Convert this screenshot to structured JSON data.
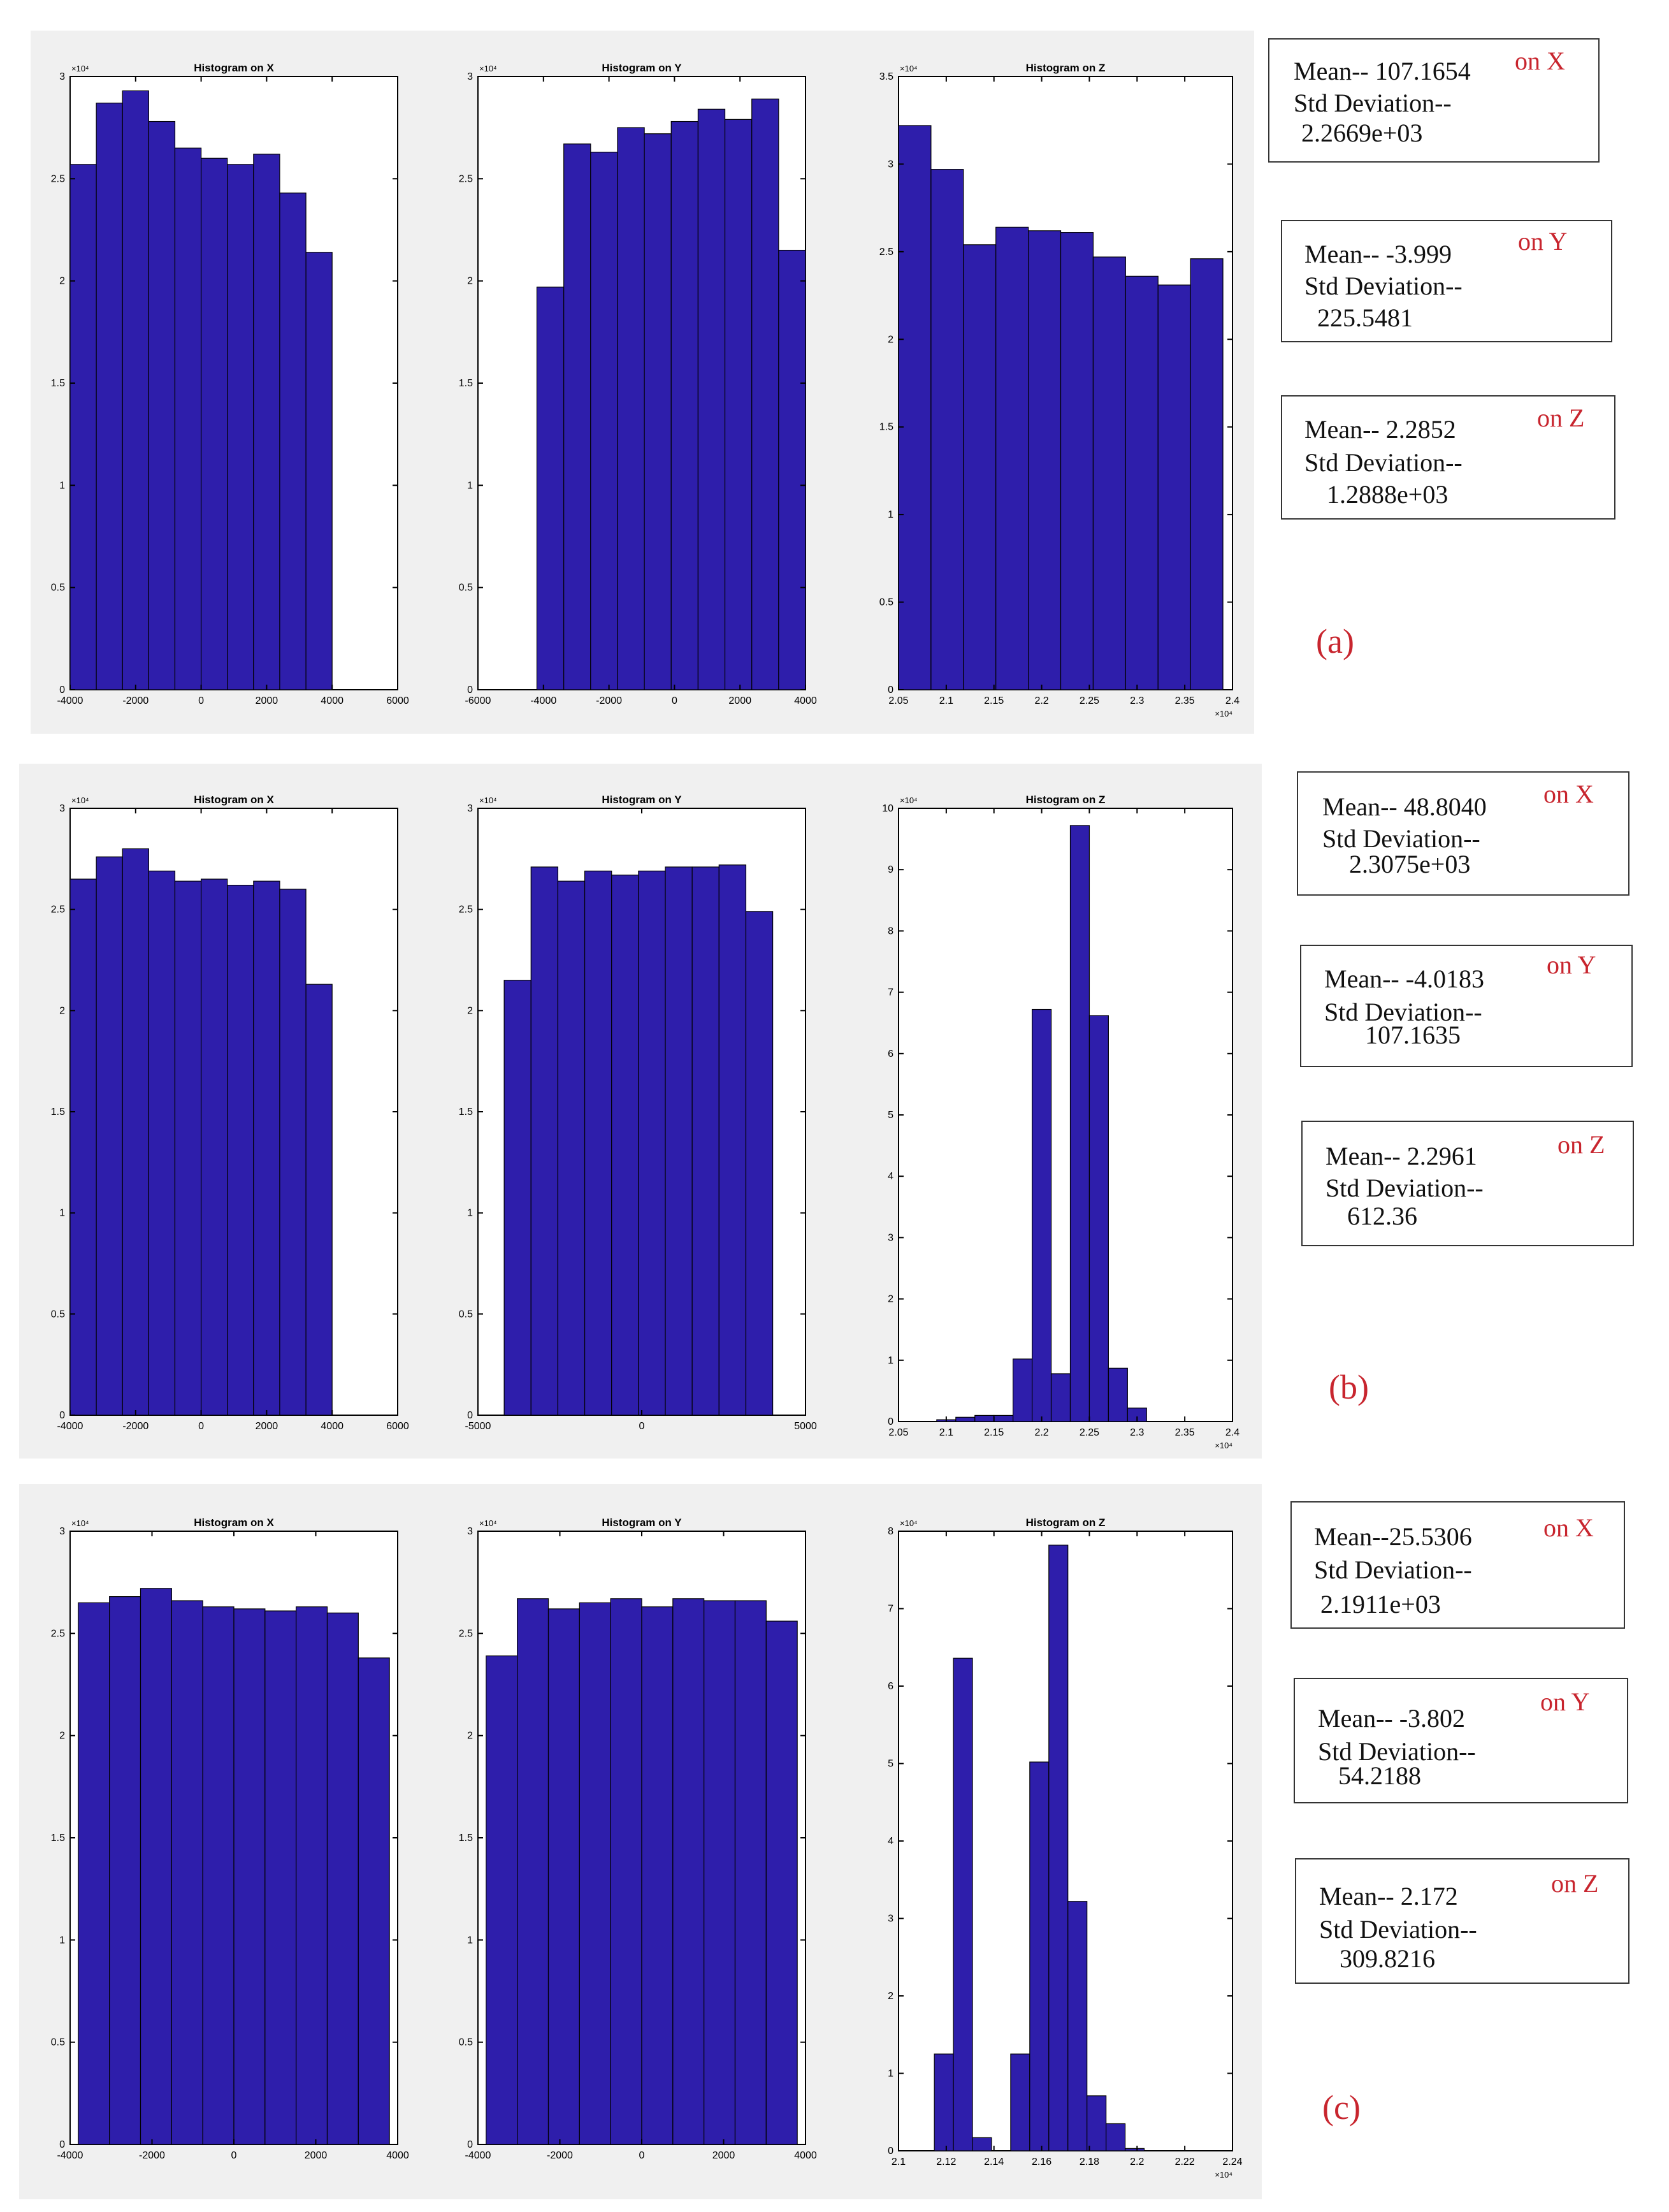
{
  "colors": {
    "bar": "#2e1eab",
    "accent": "#c8252e",
    "panel_bg": "#f0f0f0"
  },
  "panels": [
    {
      "label": "(a)",
      "stats": [
        {
          "mean_label": "Mean--",
          "mean_value": "107.1654",
          "axis": "on X",
          "std_label": "Std Deviation--",
          "std_value": "2.2669e+03"
        },
        {
          "mean_label": "Mean--",
          "mean_value": "-3.999",
          "axis": "on Y",
          "std_label": "Std Deviation--",
          "std_value": "225.5481"
        },
        {
          "mean_label": "Mean--",
          "mean_value": "2.2852",
          "axis": "on Z",
          "std_label": "Std Deviation--",
          "std_value": "1.2888e+03"
        }
      ]
    },
    {
      "label": "(b)",
      "stats": [
        {
          "mean_label": "Mean--",
          "mean_value": "48.8040",
          "axis": "on X",
          "std_label": "Std Deviation--",
          "std_value": "2.3075e+03"
        },
        {
          "mean_label": "Mean--",
          "mean_value": "-4.0183",
          "axis": "on Y",
          "std_label": "Std Deviation--",
          "std_value": "107.1635"
        },
        {
          "mean_label": "Mean--",
          "mean_value": "2.2961",
          "axis": "on Z",
          "std_label": "Std Deviation--",
          "std_value": "612.36"
        }
      ]
    },
    {
      "label": "(c)",
      "stats": [
        {
          "mean_label": "Mean--",
          "mean_value": "25.5306",
          "axis": "on X",
          "std_label": "Std Deviation--",
          "std_value": "2.1911e+03"
        },
        {
          "mean_label": "Mean--",
          "mean_value": "-3.802",
          "axis": "on Y",
          "std_label": "Std Deviation--",
          "std_value": "54.2188"
        },
        {
          "mean_label": "Mean--",
          "mean_value": "2.172",
          "axis": "on Z",
          "std_label": "Std Deviation--",
          "std_value": "309.8216"
        }
      ]
    }
  ],
  "chart_data": [
    {
      "type": "bar",
      "panel": "(a)",
      "title": "Histogram on X",
      "xlim": [
        -4000,
        6000
      ],
      "ylim": [
        0,
        3
      ],
      "xticks": [
        -4000,
        -2000,
        0,
        2000,
        4000,
        6000
      ],
      "xtick_labels": [
        "-4000",
        "-2000",
        "0",
        "2000",
        "4000",
        "6000"
      ],
      "yticks": [
        0,
        0.5,
        1,
        1.5,
        2,
        2.5,
        3
      ],
      "ytick_labels": [
        "0",
        "0.5",
        "1",
        "1.5",
        "2",
        "2.5",
        "3"
      ],
      "y_multiplier": "×10⁴",
      "x_multiplier": "",
      "bin_edges": [
        -4000,
        -3200,
        -2400,
        -1600,
        -800,
        0,
        800,
        1600,
        2400,
        3200,
        4000
      ],
      "values": [
        2.57,
        2.87,
        2.93,
        2.78,
        2.65,
        2.6,
        2.57,
        2.62,
        2.43,
        2.14
      ]
    },
    {
      "type": "bar",
      "panel": "(a)",
      "title": "Histogram on Y",
      "xlim": [
        -6000,
        4000
      ],
      "ylim": [
        0,
        3
      ],
      "xticks": [
        -6000,
        -4000,
        -2000,
        0,
        2000,
        4000
      ],
      "xtick_labels": [
        "-6000",
        "-4000",
        "-2000",
        "0",
        "2000",
        "4000"
      ],
      "yticks": [
        0,
        0.5,
        1,
        1.5,
        2,
        2.5,
        3
      ],
      "ytick_labels": [
        "0",
        "0.5",
        "1",
        "1.5",
        "2",
        "2.5",
        "3"
      ],
      "y_multiplier": "×10⁴",
      "x_multiplier": "",
      "bin_edges": [
        -4200,
        -3380,
        -2560,
        -1740,
        -920,
        -100,
        720,
        1540,
        2360,
        3180,
        4000
      ],
      "values": [
        1.97,
        2.67,
        2.63,
        2.75,
        2.72,
        2.78,
        2.84,
        2.79,
        2.89,
        2.15
      ]
    },
    {
      "type": "bar",
      "panel": "(a)",
      "title": "Histogram on Z",
      "xlim": [
        2.05,
        2.4
      ],
      "ylim": [
        0,
        3.5
      ],
      "xticks": [
        2.05,
        2.1,
        2.15,
        2.2,
        2.25,
        2.3,
        2.35,
        2.4
      ],
      "xtick_labels": [
        "2.05",
        "2.1",
        "2.15",
        "2.2",
        "2.25",
        "2.3",
        "2.35",
        "2.4"
      ],
      "yticks": [
        0,
        0.5,
        1,
        1.5,
        2,
        2.5,
        3,
        3.5
      ],
      "ytick_labels": [
        "0",
        "0.5",
        "1",
        "1.5",
        "2",
        "2.5",
        "3",
        "3.5"
      ],
      "y_multiplier": "×10⁴",
      "x_multiplier": "×10⁴",
      "bin_edges": [
        2.05,
        2.084,
        2.118,
        2.152,
        2.186,
        2.22,
        2.254,
        2.288,
        2.322,
        2.356,
        2.39
      ],
      "values": [
        3.22,
        2.97,
        2.54,
        2.64,
        2.62,
        2.61,
        2.47,
        2.36,
        2.31,
        2.46
      ]
    },
    {
      "type": "bar",
      "panel": "(b)",
      "title": "Histogram on X",
      "xlim": [
        -4000,
        6000
      ],
      "ylim": [
        0,
        3
      ],
      "xticks": [
        -4000,
        -2000,
        0,
        2000,
        4000,
        6000
      ],
      "xtick_labels": [
        "-4000",
        "-2000",
        "0",
        "2000",
        "4000",
        "6000"
      ],
      "yticks": [
        0,
        0.5,
        1,
        1.5,
        2,
        2.5,
        3
      ],
      "ytick_labels": [
        "0",
        "0.5",
        "1",
        "1.5",
        "2",
        "2.5",
        "3"
      ],
      "y_multiplier": "×10⁴",
      "x_multiplier": "",
      "bin_edges": [
        -4000,
        -3200,
        -2400,
        -1600,
        -800,
        0,
        800,
        1600,
        2400,
        3200,
        4000
      ],
      "values": [
        2.65,
        2.76,
        2.8,
        2.69,
        2.64,
        2.65,
        2.62,
        2.64,
        2.6,
        2.13
      ]
    },
    {
      "type": "bar",
      "panel": "(b)",
      "title": "Histogram on Y",
      "xlim": [
        -5000,
        5000
      ],
      "ylim": [
        0,
        3
      ],
      "xticks": [
        -5000,
        0,
        5000
      ],
      "xtick_labels": [
        "-5000",
        "0",
        "5000"
      ],
      "yticks": [
        0,
        0.5,
        1,
        1.5,
        2,
        2.5,
        3
      ],
      "ytick_labels": [
        "0",
        "0.5",
        "1",
        "1.5",
        "2",
        "2.5",
        "3"
      ],
      "y_multiplier": "×10⁴",
      "x_multiplier": "",
      "bin_edges": [
        -4200,
        -3380,
        -2560,
        -1740,
        -920,
        -100,
        720,
        1540,
        2360,
        3180,
        4000
      ],
      "values": [
        2.15,
        2.71,
        2.64,
        2.69,
        2.67,
        2.69,
        2.71,
        2.71,
        2.72,
        2.49
      ]
    },
    {
      "type": "bar",
      "panel": "(b)",
      "title": "Histogram on Z",
      "xlim": [
        2.05,
        2.4
      ],
      "ylim": [
        0,
        10
      ],
      "xticks": [
        2.05,
        2.1,
        2.15,
        2.2,
        2.25,
        2.3,
        2.35,
        2.4
      ],
      "xtick_labels": [
        "2.05",
        "2.1",
        "2.15",
        "2.2",
        "2.25",
        "2.3",
        "2.35",
        "2.4"
      ],
      "yticks": [
        0,
        1,
        2,
        3,
        4,
        5,
        6,
        7,
        8,
        9,
        10
      ],
      "ytick_labels": [
        "0",
        "1",
        "2",
        "3",
        "4",
        "5",
        "6",
        "7",
        "8",
        "9",
        "10"
      ],
      "y_multiplier": "×10⁴",
      "x_multiplier": "×10⁴",
      "bin_edges": [
        2.05,
        2.07,
        2.09,
        2.11,
        2.13,
        2.15,
        2.17,
        2.19,
        2.21,
        2.23,
        2.25,
        2.27,
        2.29,
        2.31,
        2.33,
        2.35,
        2.37,
        2.39,
        2.4
      ],
      "values": [
        0,
        0,
        0.03,
        0.07,
        0.1,
        0.1,
        1.02,
        6.72,
        0.78,
        9.72,
        6.62,
        0.87,
        0.22,
        0,
        0,
        0,
        0,
        0
      ]
    },
    {
      "type": "bar",
      "panel": "(c)",
      "title": "Histogram on X",
      "xlim": [
        -4000,
        4000
      ],
      "ylim": [
        0,
        3
      ],
      "xticks": [
        -4000,
        -2000,
        0,
        2000,
        4000
      ],
      "xtick_labels": [
        "-4000",
        "-2000",
        "0",
        "2000",
        "4000"
      ],
      "yticks": [
        0,
        0.5,
        1,
        1.5,
        2,
        2.5,
        3
      ],
      "ytick_labels": [
        "0",
        "0.5",
        "1",
        "1.5",
        "2",
        "2.5",
        "3"
      ],
      "y_multiplier": "×10⁴",
      "x_multiplier": "",
      "bin_edges": [
        -3800,
        -3040,
        -2280,
        -1520,
        -760,
        0,
        760,
        1520,
        2280,
        3040,
        3800
      ],
      "values": [
        2.65,
        2.68,
        2.72,
        2.66,
        2.63,
        2.62,
        2.61,
        2.63,
        2.6,
        2.38
      ]
    },
    {
      "type": "bar",
      "panel": "(c)",
      "title": "Histogram on Y",
      "xlim": [
        -4000,
        4000
      ],
      "ylim": [
        0,
        3
      ],
      "xticks": [
        -4000,
        -2000,
        0,
        2000,
        4000
      ],
      "xtick_labels": [
        "-4000",
        "-2000",
        "0",
        "2000",
        "4000"
      ],
      "yticks": [
        0,
        0.5,
        1,
        1.5,
        2,
        2.5,
        3
      ],
      "ytick_labels": [
        "0",
        "0.5",
        "1",
        "1.5",
        "2",
        "2.5",
        "3"
      ],
      "y_multiplier": "×10⁴",
      "x_multiplier": "",
      "bin_edges": [
        -3800,
        -3040,
        -2280,
        -1520,
        -760,
        0,
        760,
        1520,
        2280,
        3040,
        3800
      ],
      "values": [
        2.39,
        2.67,
        2.62,
        2.65,
        2.67,
        2.63,
        2.67,
        2.66,
        2.66,
        2.56
      ]
    },
    {
      "type": "bar",
      "panel": "(c)",
      "title": "Histogram on Z",
      "xlim": [
        2.1,
        2.24
      ],
      "ylim": [
        0,
        8
      ],
      "xticks": [
        2.1,
        2.12,
        2.14,
        2.16,
        2.18,
        2.2,
        2.22,
        2.24
      ],
      "xtick_labels": [
        "2.1",
        "2.12",
        "2.14",
        "2.16",
        "2.18",
        "2.2",
        "2.22",
        "2.24"
      ],
      "yticks": [
        0,
        1,
        2,
        3,
        4,
        5,
        6,
        7,
        8
      ],
      "ytick_labels": [
        "0",
        "1",
        "2",
        "3",
        "4",
        "5",
        "6",
        "7",
        "8"
      ],
      "y_multiplier": "×10⁴",
      "x_multiplier": "×10⁴",
      "bin_edges": [
        2.115,
        2.123,
        2.131,
        2.139,
        2.147,
        2.155,
        2.163,
        2.171,
        2.179,
        2.187,
        2.195,
        2.203,
        2.211,
        2.219
      ],
      "values": [
        1.25,
        6.36,
        0.17,
        0,
        1.25,
        5.02,
        7.82,
        3.22,
        0.71,
        0.35,
        0.03,
        0,
        0
      ]
    }
  ]
}
